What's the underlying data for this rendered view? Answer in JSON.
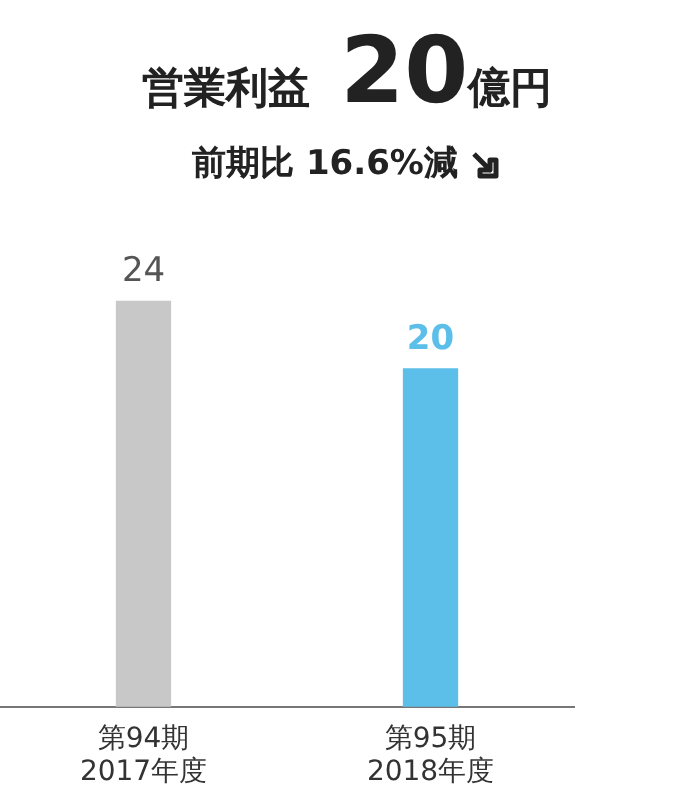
{
  "chart_data": {
    "type": "bar",
    "title": "営業利益 20億円",
    "subtitle": "前期比 16.6%減",
    "categories": [
      "第94期\n2017年度",
      "第95期\n2018年度"
    ],
    "values": [
      24,
      20
    ],
    "colors": [
      "#c8c8c8",
      "#5bbfe9"
    ],
    "data_labels": true,
    "grid": false,
    "legend": false
  }
}
